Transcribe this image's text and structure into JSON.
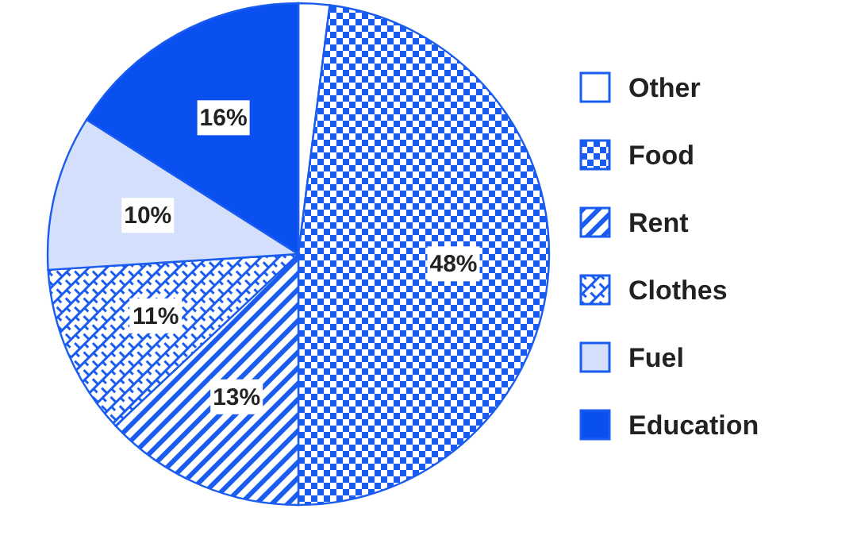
{
  "chart_data": {
    "type": "pie",
    "categories": [
      "Other",
      "Food",
      "Rent",
      "Clothes",
      "Fuel",
      "Education"
    ],
    "values": [
      2,
      48,
      13,
      11,
      10,
      16
    ],
    "value_labels": [
      null,
      "48%",
      "13%",
      "11%",
      "10%",
      "16%"
    ],
    "colors": [
      "#ffffff",
      "#1a5cf0",
      "#1a5cf0",
      "#1a5cf0",
      "#d4e0fb",
      "#0a4ff0"
    ],
    "legend": "right"
  }
}
